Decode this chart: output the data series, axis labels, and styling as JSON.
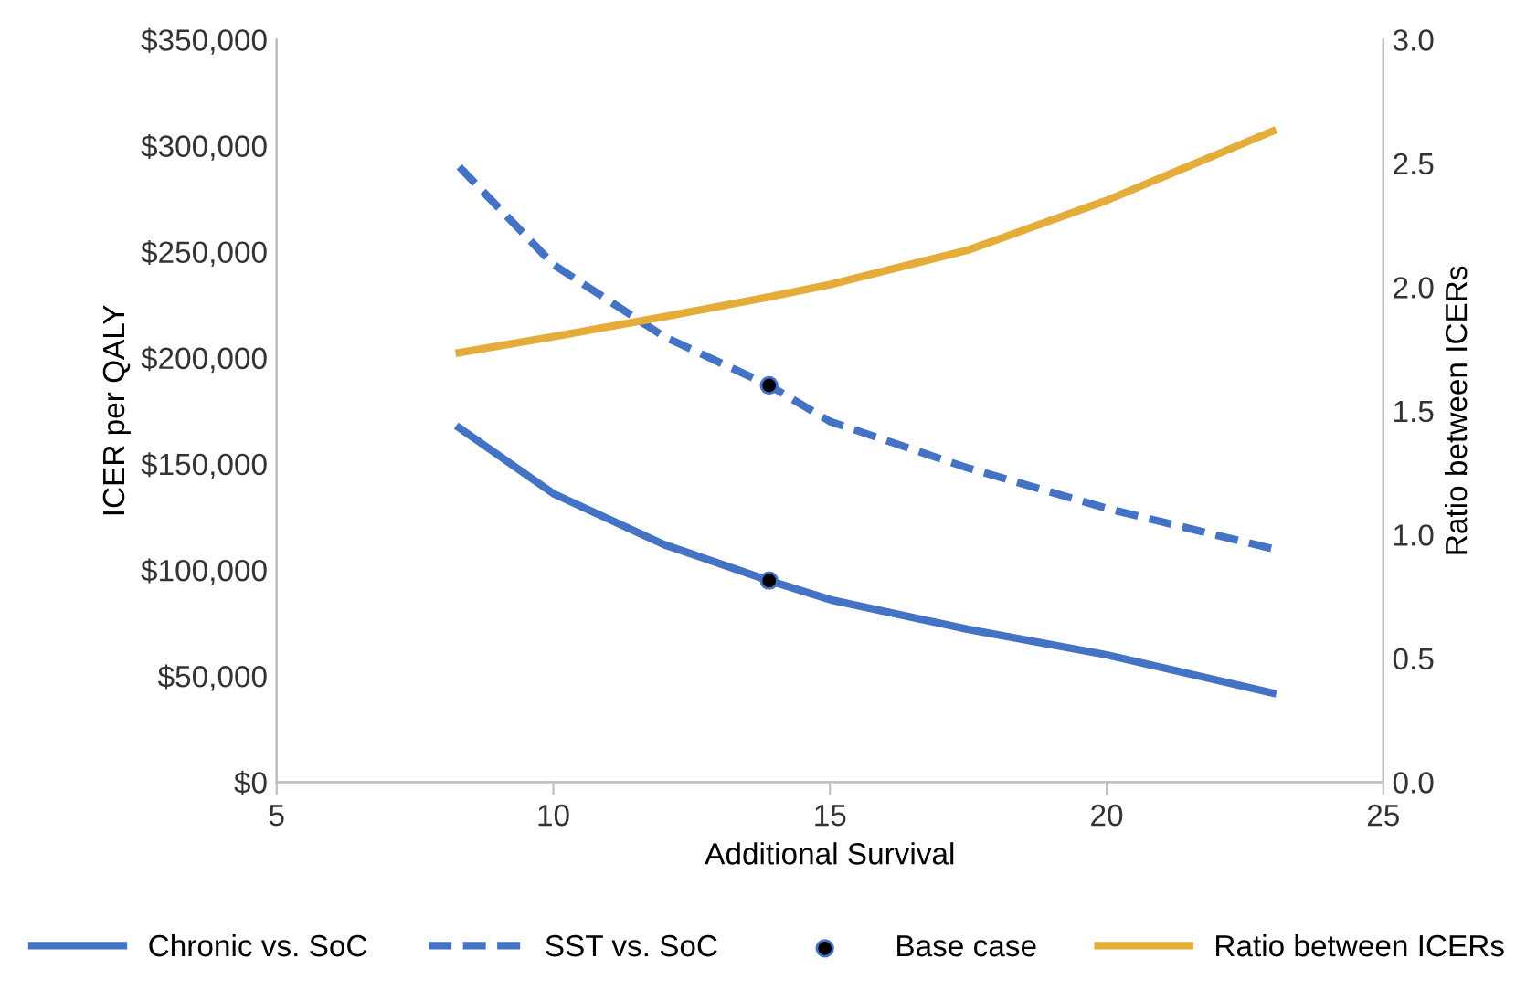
{
  "chart_data": {
    "type": "line",
    "xlabel": "Additional Survival",
    "ylabel": "ICER per QALY",
    "y2label": "Ratio between ICERs",
    "xlim": [
      5,
      25
    ],
    "xticks": [
      5,
      10,
      15,
      20,
      25
    ],
    "ylim": [
      0,
      350000
    ],
    "yticks": [
      {
        "value": 0,
        "label": "$0"
      },
      {
        "value": 50000,
        "label": "$50,000"
      },
      {
        "value": 100000,
        "label": "$100,000"
      },
      {
        "value": 150000,
        "label": "$150,000"
      },
      {
        "value": 200000,
        "label": "$200,000"
      },
      {
        "value": 250000,
        "label": "$250,000"
      },
      {
        "value": 300000,
        "label": "$300,000"
      },
      {
        "value": 350000,
        "label": "$350,000"
      }
    ],
    "y2lim": [
      0,
      3.0
    ],
    "y2ticks": [
      {
        "value": 0,
        "label": "0.0"
      },
      {
        "value": 0.5,
        "label": "0.5"
      },
      {
        "value": 1.0,
        "label": "1.0"
      },
      {
        "value": 1.5,
        "label": "1.5"
      },
      {
        "value": 2.0,
        "label": "2.0"
      },
      {
        "value": 2.5,
        "label": "2.5"
      },
      {
        "value": 3.0,
        "label": "3.0"
      }
    ],
    "grid": false,
    "legend": "bottom",
    "series": [
      {
        "name": "Chronic vs. SoC",
        "color": "#4472c4",
        "line_style": "solid",
        "x": [
          8.3,
          10,
          12,
          13.9,
          15,
          17.5,
          20,
          23
        ],
        "values": [
          167000,
          136000,
          112000,
          95000,
          86000,
          72000,
          60000,
          42000
        ]
      },
      {
        "name": "SST vs. SoC",
        "color": "#4472c4",
        "line_style": "dashed",
        "x": [
          8.3,
          10,
          12,
          13.9,
          15,
          17.5,
          20,
          23
        ],
        "values": [
          290000,
          244000,
          210000,
          187000,
          170000,
          148000,
          129000,
          110000
        ]
      },
      {
        "name": "Base case",
        "type": "scatter",
        "marker": "circle",
        "color": "#000000",
        "x": [
          13.9,
          13.9
        ],
        "values": [
          95000,
          187000
        ]
      },
      {
        "name": "Ratio between ICERs",
        "color": "#e4ad3a",
        "line_style": "solid",
        "axis": "y2",
        "x": [
          8.3,
          10,
          12,
          13.9,
          15,
          17.5,
          20,
          23
        ],
        "values": [
          1.735,
          1.8,
          1.88,
          1.96,
          2.01,
          2.15,
          2.35,
          2.63
        ]
      }
    ]
  }
}
